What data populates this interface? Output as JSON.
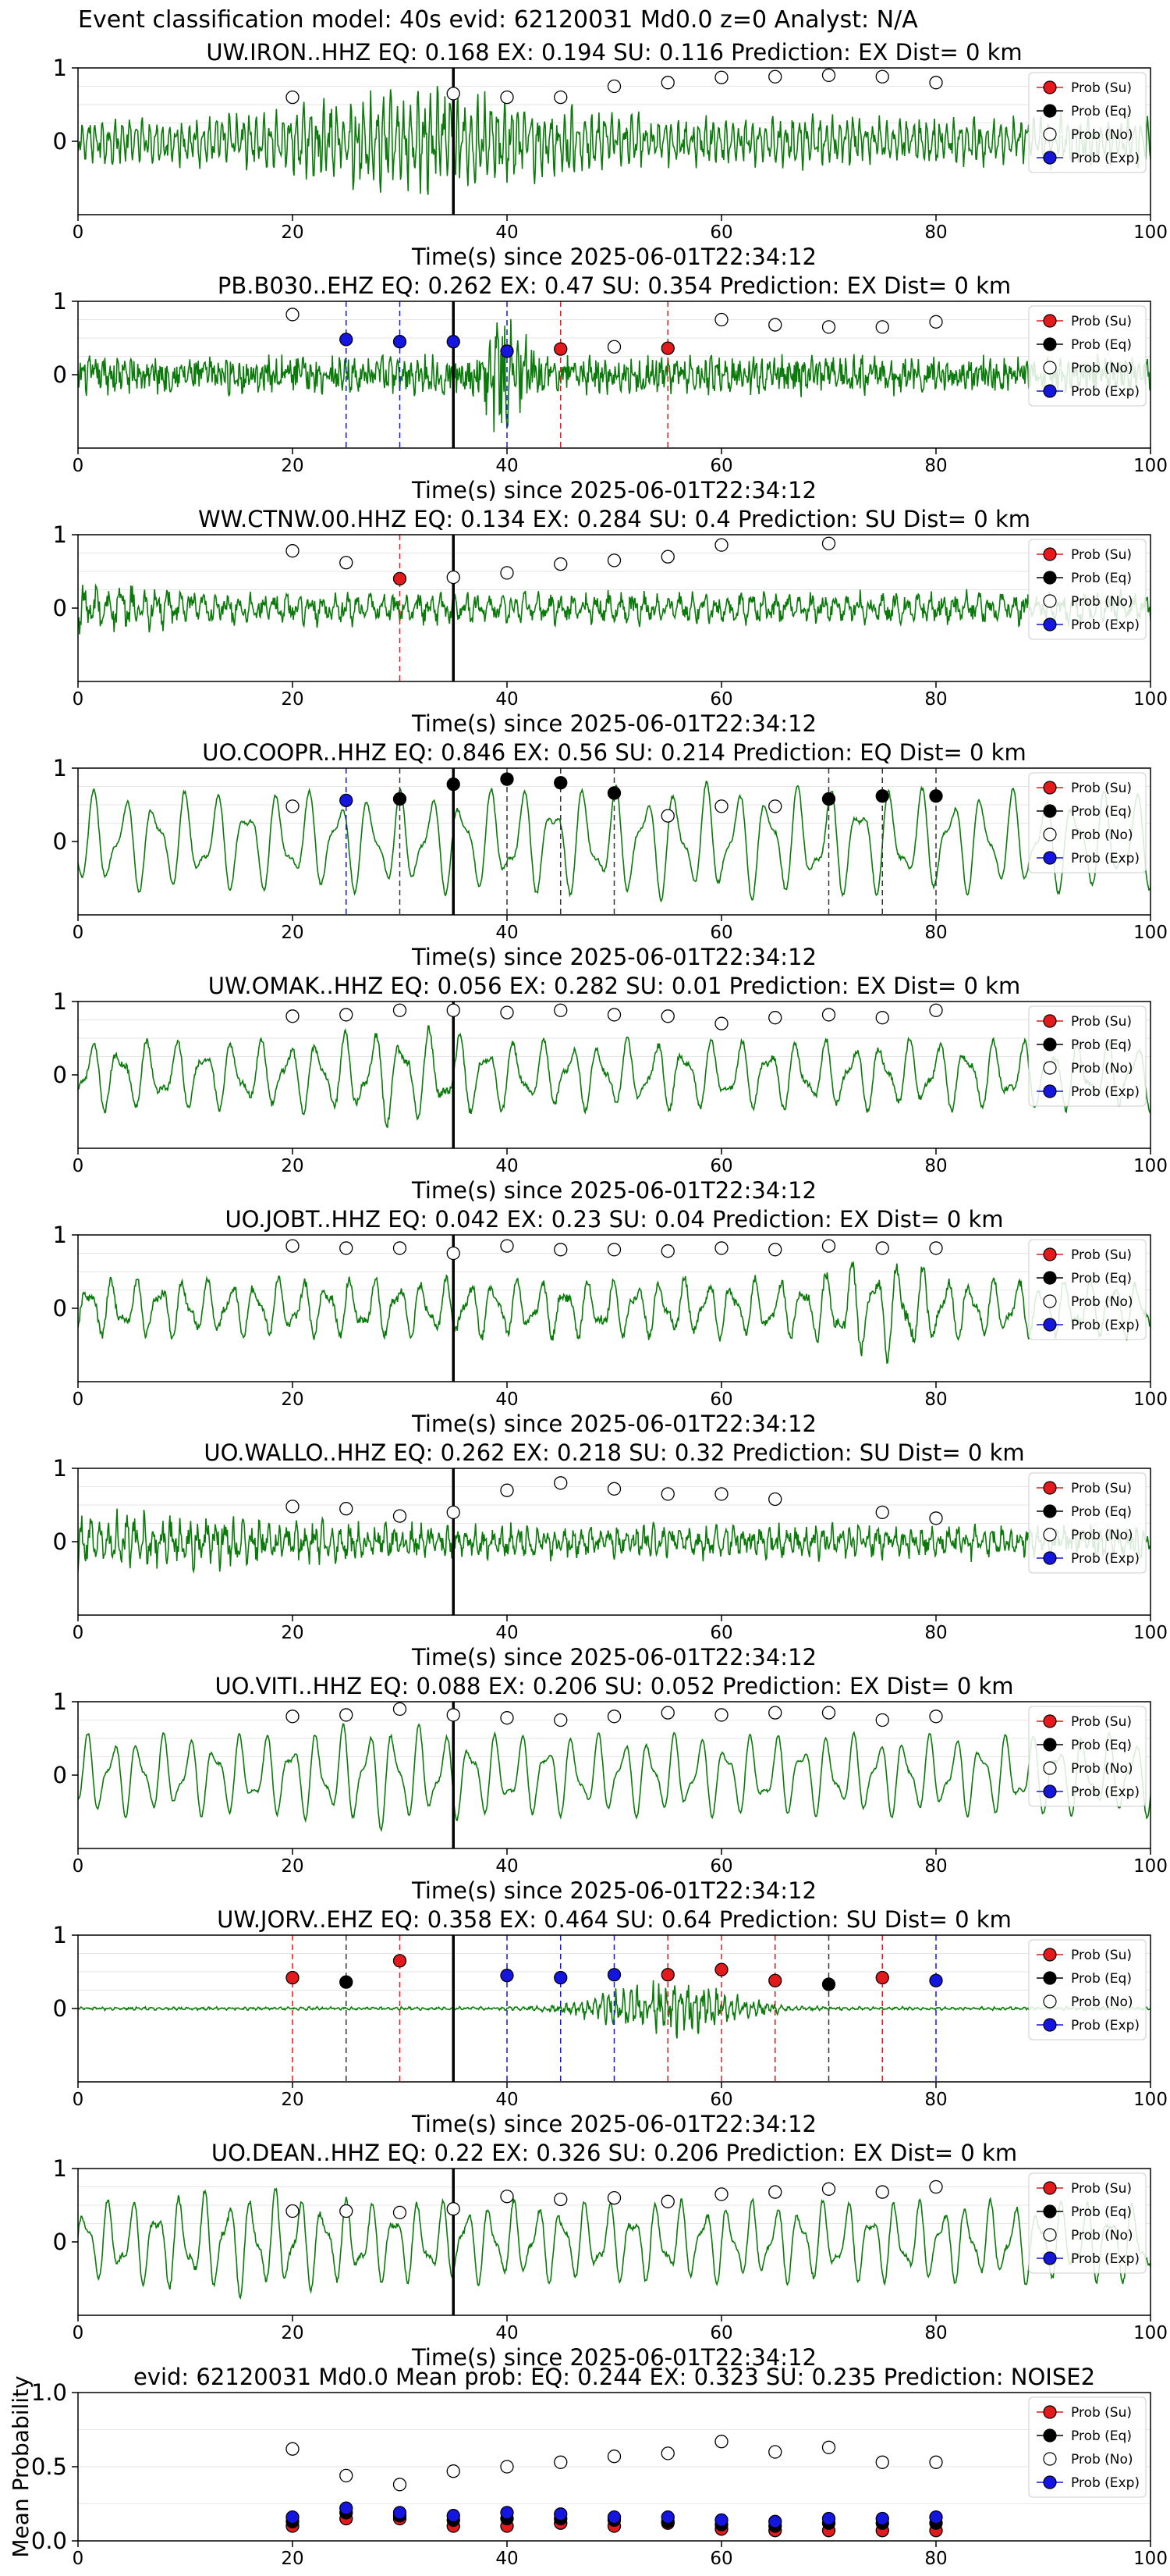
{
  "suptitle": "Event classification model: 40s evid: 62120031 Md0.0 z=0 Analyst: N/A",
  "legend_labels": [
    "Prob (Su)",
    "Prob (Eq)",
    "Prob (No)",
    "Prob (Exp)"
  ],
  "colors": {
    "su": "#e31a1c",
    "eq": "#000000",
    "no": "#ffffff",
    "exp": "#1515e0",
    "trace": "#0a7a0a"
  },
  "x_ticks": [
    "0",
    "20",
    "40",
    "60",
    "80",
    "100"
  ],
  "chart_data": [
    {
      "type": "line",
      "title": "UW.IRON..HHZ   EQ: 0.168  EX: 0.194  SU: 0.116   Prediction: EX    Dist= 0 km",
      "xlabel": "Time(s) since 2025-06-01T22:34:12",
      "xlim": [
        0,
        100
      ],
      "ylim": [
        -1,
        1
      ],
      "yticks": [
        "1",
        "0"
      ],
      "pick_time": 35,
      "amp": 0.35,
      "freq": 1.6,
      "noise": 0.55,
      "burst": {
        "center": 33,
        "width": 12,
        "gain": 2.2
      },
      "points": [
        {
          "x": 20,
          "y": 0.6,
          "class": "no"
        },
        {
          "x": 35,
          "y": 0.65,
          "class": "no"
        },
        {
          "x": 40,
          "y": 0.6,
          "class": "no"
        },
        {
          "x": 45,
          "y": 0.6,
          "class": "no"
        },
        {
          "x": 50,
          "y": 0.75,
          "class": "no"
        },
        {
          "x": 55,
          "y": 0.8,
          "class": "no"
        },
        {
          "x": 60,
          "y": 0.87,
          "class": "no"
        },
        {
          "x": 65,
          "y": 0.88,
          "class": "no"
        },
        {
          "x": 70,
          "y": 0.9,
          "class": "no"
        },
        {
          "x": 75,
          "y": 0.88,
          "class": "no"
        },
        {
          "x": 80,
          "y": 0.8,
          "class": "no"
        }
      ]
    },
    {
      "type": "line",
      "title": "PB.B030..EHZ   EQ: 0.262  EX: 0.47  SU: 0.354   Prediction: EX    Dist= 0 km",
      "xlabel": "Time(s) since 2025-06-01T22:34:12",
      "xlim": [
        0,
        100
      ],
      "ylim": [
        -1,
        1
      ],
      "yticks": [
        "1",
        "0"
      ],
      "pick_time": 35,
      "amp": 0.15,
      "freq": 1.5,
      "noise": 0.85,
      "burst": {
        "center": 40,
        "width": 2,
        "gain": 3.5
      },
      "points": [
        {
          "x": 20,
          "y": 0.82,
          "class": "no"
        },
        {
          "x": 25,
          "y": 0.48,
          "class": "exp"
        },
        {
          "x": 30,
          "y": 0.45,
          "class": "exp"
        },
        {
          "x": 35,
          "y": 0.45,
          "class": "exp"
        },
        {
          "x": 40,
          "y": 0.32,
          "class": "exp"
        },
        {
          "x": 45,
          "y": 0.35,
          "class": "su"
        },
        {
          "x": 50,
          "y": 0.38,
          "class": "no"
        },
        {
          "x": 55,
          "y": 0.36,
          "class": "su"
        },
        {
          "x": 60,
          "y": 0.75,
          "class": "no"
        },
        {
          "x": 65,
          "y": 0.68,
          "class": "no"
        },
        {
          "x": 70,
          "y": 0.65,
          "class": "no"
        },
        {
          "x": 75,
          "y": 0.65,
          "class": "no"
        },
        {
          "x": 80,
          "y": 0.72,
          "class": "no"
        }
      ]
    },
    {
      "type": "line",
      "title": "WW.CTNW.00.HHZ   EQ: 0.134  EX: 0.284  SU: 0.4   Prediction: SU    Dist= 0 km",
      "xlabel": "Time(s) since 2025-06-01T22:34:12",
      "xlim": [
        0,
        100
      ],
      "ylim": [
        -1,
        1
      ],
      "yticks": [
        "1",
        "0"
      ],
      "pick_time": 35,
      "amp": 0.2,
      "freq": 0.9,
      "noise": 0.5,
      "burst": {
        "center": 2,
        "width": 8,
        "gain": 1.6
      },
      "points": [
        {
          "x": 20,
          "y": 0.78,
          "class": "no"
        },
        {
          "x": 25,
          "y": 0.62,
          "class": "no"
        },
        {
          "x": 30,
          "y": 0.4,
          "class": "su"
        },
        {
          "x": 35,
          "y": 0.42,
          "class": "no"
        },
        {
          "x": 40,
          "y": 0.48,
          "class": "no"
        },
        {
          "x": 45,
          "y": 0.6,
          "class": "no"
        },
        {
          "x": 50,
          "y": 0.65,
          "class": "no"
        },
        {
          "x": 55,
          "y": 0.7,
          "class": "no"
        },
        {
          "x": 60,
          "y": 0.86,
          "class": "no"
        },
        {
          "x": 70,
          "y": 0.88,
          "class": "no"
        }
      ]
    },
    {
      "type": "line",
      "title": "UO.COOPR..HHZ   EQ: 0.846  EX: 0.56  SU: 0.214   Prediction: EQ    Dist= 0 km",
      "xlabel": "Time(s) since 2025-06-01T22:34:12",
      "xlim": [
        0,
        100
      ],
      "ylim": [
        -1,
        1
      ],
      "yticks": [
        "1",
        "0"
      ],
      "pick_time": 35,
      "amp": 0.85,
      "freq": 0.35,
      "noise": 0.1,
      "burst": {
        "center": 60,
        "width": 20,
        "gain": 1.15
      },
      "points": [
        {
          "x": 20,
          "y": 0.48,
          "class": "no"
        },
        {
          "x": 25,
          "y": 0.56,
          "class": "exp"
        },
        {
          "x": 30,
          "y": 0.58,
          "class": "eq"
        },
        {
          "x": 35,
          "y": 0.78,
          "class": "eq"
        },
        {
          "x": 40,
          "y": 0.85,
          "class": "eq"
        },
        {
          "x": 45,
          "y": 0.8,
          "class": "eq"
        },
        {
          "x": 50,
          "y": 0.66,
          "class": "eq"
        },
        {
          "x": 55,
          "y": 0.35,
          "class": "no"
        },
        {
          "x": 60,
          "y": 0.48,
          "class": "no"
        },
        {
          "x": 65,
          "y": 0.48,
          "class": "no"
        },
        {
          "x": 70,
          "y": 0.58,
          "class": "eq"
        },
        {
          "x": 75,
          "y": 0.62,
          "class": "eq"
        },
        {
          "x": 80,
          "y": 0.62,
          "class": "eq"
        }
      ]
    },
    {
      "type": "line",
      "title": "UW.OMAK..HHZ   EQ: 0.056  EX: 0.282  SU: 0.01   Prediction: EX    Dist= 0 km",
      "xlabel": "Time(s) since 2025-06-01T22:34:12",
      "xlim": [
        0,
        100
      ],
      "ylim": [
        -1,
        1
      ],
      "yticks": [
        "1",
        "0"
      ],
      "pick_time": 35,
      "amp": 0.6,
      "freq": 0.38,
      "noise": 0.18,
      "burst": {
        "center": 30,
        "width": 6,
        "gain": 1.4
      },
      "points": [
        {
          "x": 20,
          "y": 0.8,
          "class": "no"
        },
        {
          "x": 25,
          "y": 0.82,
          "class": "no"
        },
        {
          "x": 30,
          "y": 0.88,
          "class": "no"
        },
        {
          "x": 35,
          "y": 0.88,
          "class": "no"
        },
        {
          "x": 40,
          "y": 0.85,
          "class": "no"
        },
        {
          "x": 45,
          "y": 0.88,
          "class": "no"
        },
        {
          "x": 50,
          "y": 0.82,
          "class": "no"
        },
        {
          "x": 55,
          "y": 0.8,
          "class": "no"
        },
        {
          "x": 60,
          "y": 0.7,
          "class": "no"
        },
        {
          "x": 65,
          "y": 0.78,
          "class": "no"
        },
        {
          "x": 70,
          "y": 0.82,
          "class": "no"
        },
        {
          "x": 75,
          "y": 0.78,
          "class": "no"
        },
        {
          "x": 80,
          "y": 0.88,
          "class": "no"
        }
      ]
    },
    {
      "type": "line",
      "title": "UO.JOBT..HHZ   EQ: 0.042  EX: 0.23  SU: 0.04   Prediction: EX    Dist= 0 km",
      "xlabel": "Time(s) since 2025-06-01T22:34:12",
      "xlim": [
        0,
        100
      ],
      "ylim": [
        -1,
        1
      ],
      "yticks": [
        "1",
        "0"
      ],
      "pick_time": 35,
      "amp": 0.5,
      "freq": 0.45,
      "noise": 0.25,
      "burst": {
        "center": 75,
        "width": 5,
        "gain": 1.7
      },
      "points": [
        {
          "x": 20,
          "y": 0.85,
          "class": "no"
        },
        {
          "x": 25,
          "y": 0.82,
          "class": "no"
        },
        {
          "x": 30,
          "y": 0.82,
          "class": "no"
        },
        {
          "x": 35,
          "y": 0.75,
          "class": "no"
        },
        {
          "x": 40,
          "y": 0.85,
          "class": "no"
        },
        {
          "x": 45,
          "y": 0.8,
          "class": "no"
        },
        {
          "x": 50,
          "y": 0.8,
          "class": "no"
        },
        {
          "x": 55,
          "y": 0.78,
          "class": "no"
        },
        {
          "x": 60,
          "y": 0.82,
          "class": "no"
        },
        {
          "x": 65,
          "y": 0.8,
          "class": "no"
        },
        {
          "x": 70,
          "y": 0.85,
          "class": "no"
        },
        {
          "x": 75,
          "y": 0.82,
          "class": "no"
        },
        {
          "x": 80,
          "y": 0.82,
          "class": "no"
        }
      ]
    },
    {
      "type": "line",
      "title": "UO.WALLO..HHZ   EQ: 0.262  EX: 0.218  SU: 0.32   Prediction: SU    Dist= 0 km",
      "xlabel": "Time(s) since 2025-06-01T22:34:12",
      "xlim": [
        0,
        100
      ],
      "ylim": [
        -1,
        1
      ],
      "yticks": [
        "1",
        "0"
      ],
      "pick_time": 35,
      "amp": 0.2,
      "freq": 1.2,
      "noise": 0.55,
      "burst": {
        "center": 5,
        "width": 18,
        "gain": 1.6
      },
      "points": [
        {
          "x": 20,
          "y": 0.48,
          "class": "no"
        },
        {
          "x": 25,
          "y": 0.45,
          "class": "no"
        },
        {
          "x": 30,
          "y": 0.35,
          "class": "no"
        },
        {
          "x": 35,
          "y": 0.4,
          "class": "no"
        },
        {
          "x": 40,
          "y": 0.7,
          "class": "no"
        },
        {
          "x": 45,
          "y": 0.8,
          "class": "no"
        },
        {
          "x": 50,
          "y": 0.72,
          "class": "no"
        },
        {
          "x": 55,
          "y": 0.65,
          "class": "no"
        },
        {
          "x": 60,
          "y": 0.65,
          "class": "no"
        },
        {
          "x": 65,
          "y": 0.58,
          "class": "no"
        },
        {
          "x": 75,
          "y": 0.4,
          "class": "no"
        },
        {
          "x": 80,
          "y": 0.32,
          "class": "no"
        }
      ]
    },
    {
      "type": "line",
      "title": "UO.VITI..HHZ   EQ: 0.088  EX: 0.206  SU: 0.052   Prediction: EX    Dist= 0 km",
      "xlabel": "Time(s) since 2025-06-01T22:34:12",
      "xlim": [
        0,
        100
      ],
      "ylim": [
        -1,
        1
      ],
      "yticks": [
        "1",
        "0"
      ],
      "pick_time": 35,
      "amp": 0.7,
      "freq": 0.42,
      "noise": 0.08,
      "burst": {
        "center": 28,
        "width": 6,
        "gain": 1.3
      },
      "points": [
        {
          "x": 20,
          "y": 0.8,
          "class": "no"
        },
        {
          "x": 25,
          "y": 0.82,
          "class": "no"
        },
        {
          "x": 30,
          "y": 0.9,
          "class": "no"
        },
        {
          "x": 35,
          "y": 0.82,
          "class": "no"
        },
        {
          "x": 40,
          "y": 0.78,
          "class": "no"
        },
        {
          "x": 45,
          "y": 0.75,
          "class": "no"
        },
        {
          "x": 50,
          "y": 0.8,
          "class": "no"
        },
        {
          "x": 55,
          "y": 0.85,
          "class": "no"
        },
        {
          "x": 60,
          "y": 0.82,
          "class": "no"
        },
        {
          "x": 65,
          "y": 0.85,
          "class": "no"
        },
        {
          "x": 70,
          "y": 0.85,
          "class": "no"
        },
        {
          "x": 75,
          "y": 0.75,
          "class": "no"
        },
        {
          "x": 80,
          "y": 0.8,
          "class": "no"
        }
      ]
    },
    {
      "type": "line",
      "title": "UW.JORV..EHZ   EQ: 0.358  EX: 0.464  SU: 0.64   Prediction: SU    Dist= 0 km",
      "xlabel": "Time(s) since 2025-06-01T22:34:12",
      "xlim": [
        0,
        100
      ],
      "ylim": [
        -1,
        1
      ],
      "yticks": [
        "1",
        "0"
      ],
      "pick_time": 35,
      "amp": 0.02,
      "freq": 1.5,
      "noise": 0.05,
      "burst": {
        "center": 55,
        "width": 7,
        "gain": 18
      },
      "points": [
        {
          "x": 20,
          "y": 0.42,
          "class": "su"
        },
        {
          "x": 25,
          "y": 0.36,
          "class": "eq"
        },
        {
          "x": 30,
          "y": 0.65,
          "class": "su"
        },
        {
          "x": 40,
          "y": 0.45,
          "class": "exp"
        },
        {
          "x": 45,
          "y": 0.42,
          "class": "exp"
        },
        {
          "x": 50,
          "y": 0.46,
          "class": "exp"
        },
        {
          "x": 55,
          "y": 0.46,
          "class": "su"
        },
        {
          "x": 60,
          "y": 0.53,
          "class": "su"
        },
        {
          "x": 65,
          "y": 0.38,
          "class": "su"
        },
        {
          "x": 70,
          "y": 0.33,
          "class": "eq"
        },
        {
          "x": 75,
          "y": 0.42,
          "class": "su"
        },
        {
          "x": 80,
          "y": 0.38,
          "class": "exp"
        }
      ]
    },
    {
      "type": "line",
      "title": "UO.DEAN..HHZ   EQ: 0.22  EX: 0.326  SU: 0.206   Prediction: EX    Dist= 0 km",
      "xlabel": "Time(s) since 2025-06-01T22:34:12",
      "xlim": [
        0,
        100
      ],
      "ylim": [
        -1,
        1
      ],
      "yticks": [
        "1",
        "0"
      ],
      "pick_time": 35,
      "amp": 0.7,
      "freq": 0.45,
      "noise": 0.15,
      "burst": {
        "center": 15,
        "width": 8,
        "gain": 1.3
      },
      "points": [
        {
          "x": 20,
          "y": 0.42,
          "class": "no"
        },
        {
          "x": 25,
          "y": 0.42,
          "class": "no"
        },
        {
          "x": 30,
          "y": 0.4,
          "class": "no"
        },
        {
          "x": 35,
          "y": 0.45,
          "class": "no"
        },
        {
          "x": 40,
          "y": 0.62,
          "class": "no"
        },
        {
          "x": 45,
          "y": 0.58,
          "class": "no"
        },
        {
          "x": 50,
          "y": 0.6,
          "class": "no"
        },
        {
          "x": 55,
          "y": 0.55,
          "class": "no"
        },
        {
          "x": 60,
          "y": 0.65,
          "class": "no"
        },
        {
          "x": 65,
          "y": 0.68,
          "class": "no"
        },
        {
          "x": 70,
          "y": 0.72,
          "class": "no"
        },
        {
          "x": 75,
          "y": 0.68,
          "class": "no"
        },
        {
          "x": 80,
          "y": 0.75,
          "class": "no"
        }
      ]
    },
    {
      "type": "scatter",
      "title": "evid: 62120031  Md0.0   Mean prob:   EQ: 0.244  EX: 0.323  SU: 0.235   Prediction: NOISE2",
      "ylabel": "Mean Probability",
      "xlim": [
        0,
        100
      ],
      "ylim": [
        0,
        1
      ],
      "yticks": [
        "1.0",
        "0.5",
        "0.0"
      ],
      "series": [
        {
          "class": "su",
          "x": [
            20,
            25,
            30,
            35,
            40,
            45,
            50,
            55,
            60,
            65,
            70,
            75,
            80
          ],
          "y": [
            0.1,
            0.15,
            0.15,
            0.1,
            0.1,
            0.12,
            0.1,
            0.12,
            0.08,
            0.07,
            0.07,
            0.07,
            0.07
          ]
        },
        {
          "class": "eq",
          "x": [
            20,
            25,
            30,
            35,
            40,
            45,
            50,
            55,
            60,
            65,
            70,
            75,
            80
          ],
          "y": [
            0.13,
            0.19,
            0.17,
            0.14,
            0.15,
            0.15,
            0.14,
            0.13,
            0.11,
            0.1,
            0.12,
            0.12,
            0.12
          ]
        },
        {
          "class": "no",
          "x": [
            20,
            25,
            30,
            35,
            40,
            45,
            50,
            55,
            60,
            65,
            70,
            75,
            80
          ],
          "y": [
            0.62,
            0.44,
            0.38,
            0.47,
            0.5,
            0.53,
            0.57,
            0.59,
            0.67,
            0.6,
            0.63,
            0.53,
            0.53
          ]
        },
        {
          "class": "exp",
          "x": [
            20,
            25,
            30,
            35,
            40,
            45,
            50,
            55,
            60,
            65,
            70,
            75,
            80
          ],
          "y": [
            0.16,
            0.22,
            0.19,
            0.17,
            0.19,
            0.18,
            0.16,
            0.16,
            0.14,
            0.13,
            0.15,
            0.15,
            0.16
          ]
        }
      ]
    }
  ]
}
